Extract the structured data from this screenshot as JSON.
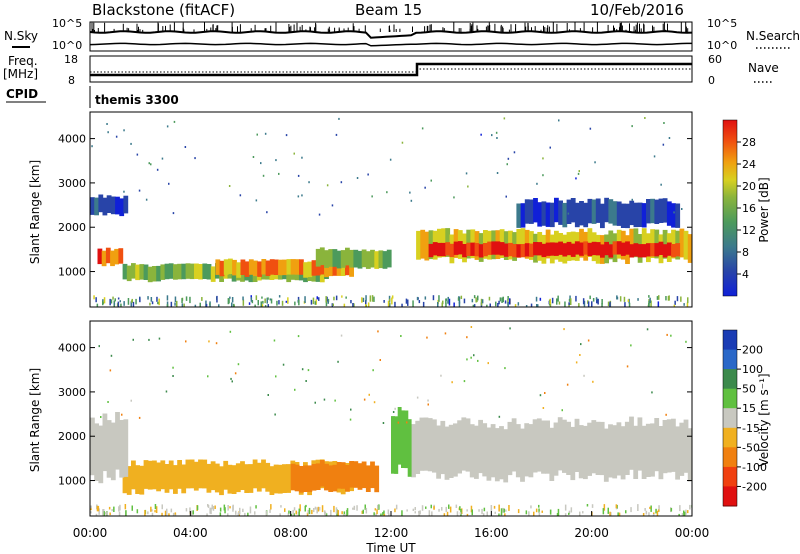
{
  "header": {
    "station": "Blackstone (fitACF)",
    "beam": "Beam 15",
    "date": "10/Feb/2016"
  },
  "top_panels": {
    "nsky_label": "N.Sky",
    "nsearch_label": "N.Search",
    "count_ticks": [
      "10^5",
      "10^0"
    ],
    "freq_label": "Freq.",
    "freq_unit": "[MHz]",
    "freq_ticks": [
      "18",
      "8"
    ],
    "nave_label": "Nave",
    "nave_ticks": [
      "60",
      "0"
    ],
    "cpid_label": "CPID",
    "cpid_value": "themis 3300"
  },
  "chart_data": [
    {
      "type": "heatmap",
      "name": "power",
      "ylabel": "Slant Range [km]",
      "ylim": [
        200,
        4600
      ],
      "yticks": [
        1000,
        2000,
        3000,
        4000
      ],
      "colorbar_label": "Power [dB]",
      "colorbar_ticks": [
        "4",
        "8",
        "12",
        "16",
        "20",
        "24",
        "28"
      ],
      "colors": [
        "#1020d8",
        "#2844a8",
        "#3c7a8c",
        "#4c9a5c",
        "#8ab43c",
        "#d8d020",
        "#f0a010",
        "#f05010",
        "#e01010"
      ],
      "bands": [
        {
          "t": [
            0.3,
            1.3
          ],
          "r": [
            1150,
            1500
          ],
          "level": 7
        },
        {
          "t": [
            1.3,
            9.5
          ],
          "r": [
            800,
            1150
          ],
          "level": 4
        },
        {
          "t": [
            5.0,
            10.5
          ],
          "r": [
            900,
            1250
          ],
          "level": 6
        },
        {
          "t": [
            9.0,
            12.0
          ],
          "r": [
            1100,
            1500
          ],
          "level": 4
        },
        {
          "t": [
            13.0,
            24.0
          ],
          "r": [
            1250,
            1900
          ],
          "level": 5
        },
        {
          "t": [
            13.5,
            23.5
          ],
          "r": [
            1350,
            1650
          ],
          "level": 8
        },
        {
          "t": [
            0.0,
            1.5
          ],
          "r": [
            2300,
            2700
          ],
          "level": 1
        },
        {
          "t": [
            17.0,
            23.5
          ],
          "r": [
            2050,
            2600
          ],
          "level": 1
        }
      ]
    },
    {
      "type": "heatmap",
      "name": "velocity",
      "ylabel": "Slant Range [km]",
      "ylim": [
        200,
        4600
      ],
      "yticks": [
        1000,
        2000,
        3000,
        4000
      ],
      "colorbar_label": "Velocity [m s⁻¹]",
      "colorbar_ticks": [
        "200",
        "100",
        "50",
        "15",
        "-15",
        "-50",
        "-100",
        "-200"
      ],
      "colors": [
        "#1a3cb4",
        "#2a68c8",
        "#3c8a4c",
        "#60c040",
        "#c8c8c0",
        "#f0b020",
        "#f08010",
        "#f04010",
        "#e01010"
      ],
      "bands": [
        {
          "t": [
            1.3,
            10.5
          ],
          "r": [
            750,
            1400
          ],
          "value": -50
        },
        {
          "t": [
            8.0,
            11.5
          ],
          "r": [
            800,
            1400
          ],
          "value": -100
        },
        {
          "t": [
            0.0,
            1.5
          ],
          "r": [
            1100,
            2400
          ],
          "value": 0
        },
        {
          "t": [
            12.8,
            24.0
          ],
          "r": [
            1100,
            2300
          ],
          "value": 0
        },
        {
          "t": [
            12.0,
            12.8
          ],
          "r": [
            1200,
            2500
          ],
          "value": 30
        }
      ]
    }
  ],
  "time_axis": {
    "label": "Time UT",
    "ticks": [
      "00:00",
      "04:00",
      "08:00",
      "12:00",
      "16:00",
      "20:00",
      "00:00"
    ]
  }
}
